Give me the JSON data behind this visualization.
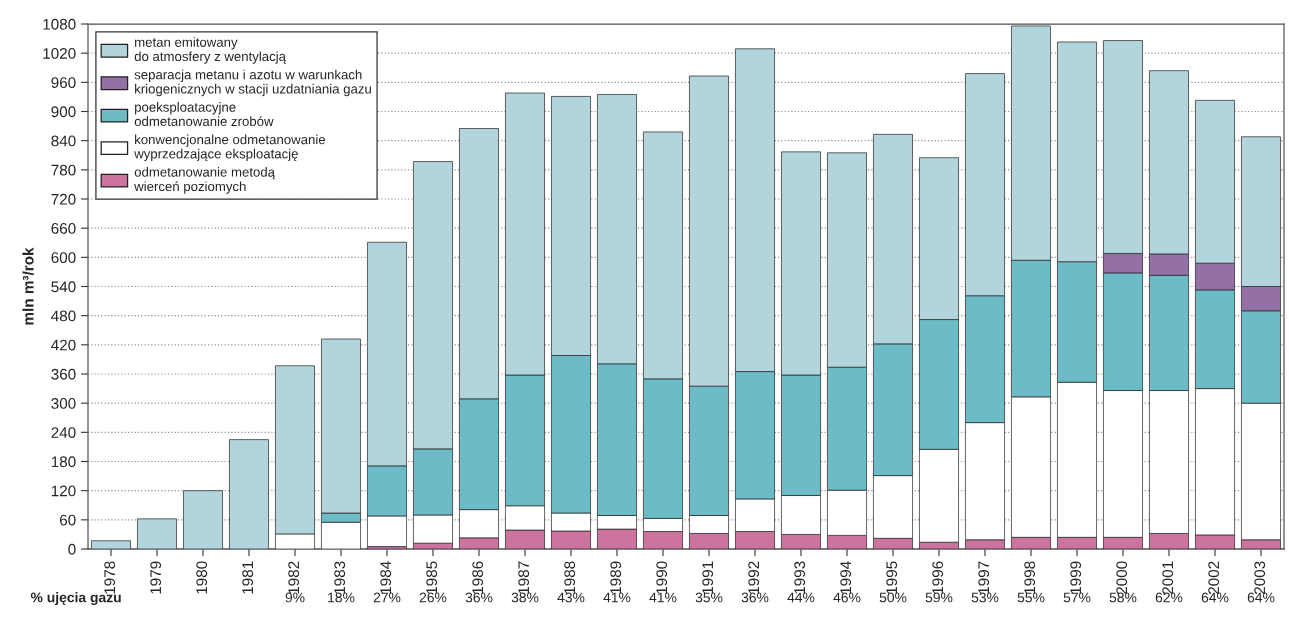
{
  "chart_data": {
    "type": "bar",
    "stacked": true,
    "ylabel": "mln m³/rok",
    "categories": [
      "1978",
      "1979",
      "1980",
      "1981",
      "1982",
      "1983",
      "1984",
      "1985",
      "1986",
      "1987",
      "1988",
      "1989",
      "1990",
      "1991",
      "1992",
      "1993",
      "1994",
      "1995",
      "1996",
      "1997",
      "1998",
      "1999",
      "2000",
      "2001",
      "2002",
      "2003"
    ],
    "series": [
      {
        "name": "odmetanowanie metodą\nwierceń poziomych",
        "color": "#cc739e",
        "values": [
          null,
          null,
          null,
          null,
          null,
          null,
          5,
          12,
          23,
          39,
          37,
          41,
          36,
          32,
          36,
          30,
          28,
          22,
          14,
          19,
          24,
          24,
          24,
          32,
          29,
          19
        ]
      },
      {
        "name": "konwencjonalne odmetanowanie\nwyprzedzające eksploatację",
        "color": "#ffffff",
        "values": [
          null,
          null,
          null,
          null,
          31,
          55,
          63,
          58,
          58,
          50,
          37,
          28,
          27,
          37,
          67,
          80,
          93,
          129,
          191,
          241,
          289,
          319,
          302,
          294,
          301,
          281
        ]
      },
      {
        "name": "poeksploatacyjne\nodmetanowanie zrobów",
        "color": "#6dbbc6",
        "values": [
          null,
          null,
          null,
          null,
          null,
          19,
          103,
          136,
          228,
          269,
          324,
          312,
          287,
          266,
          262,
          248,
          253,
          271,
          267,
          261,
          281,
          248,
          242,
          237,
          203,
          190
        ]
      },
      {
        "name": "separacja metanu i azotu w warunkach\nkriogenicznych w stacji uzdatniania gazu",
        "color": "#9370a6",
        "values": [
          null,
          null,
          null,
          null,
          null,
          null,
          null,
          null,
          null,
          null,
          null,
          null,
          null,
          null,
          null,
          null,
          null,
          null,
          null,
          null,
          null,
          null,
          40,
          44,
          55,
          50
        ]
      },
      {
        "name": "metan emitowany\ndo atmosfery z wentylacją",
        "color": "#b2d4dc",
        "values": [
          17,
          62,
          120,
          225,
          346,
          358,
          460,
          591,
          556,
          580,
          533,
          554,
          508,
          638,
          664,
          459,
          441,
          431,
          333,
          457,
          482,
          452,
          438,
          377,
          335,
          308
        ]
      }
    ],
    "ylim": [
      0,
      1080
    ],
    "yticks": [
      0,
      60,
      120,
      180,
      240,
      300,
      360,
      420,
      480,
      540,
      600,
      660,
      720,
      780,
      840,
      900,
      960,
      1020,
      1080
    ],
    "grid": "y",
    "legend": "top left",
    "annotations": [
      "% ujęcia gazu",
      "9%",
      "18%",
      "27%",
      "26%",
      "36%",
      "38%",
      "43%",
      "41%",
      "41%",
      "35%",
      "36%",
      "44%",
      "46%",
      "50%",
      "59%",
      "53%",
      "55%",
      "57%",
      "58%",
      "62%",
      "64%",
      "64%"
    ]
  }
}
